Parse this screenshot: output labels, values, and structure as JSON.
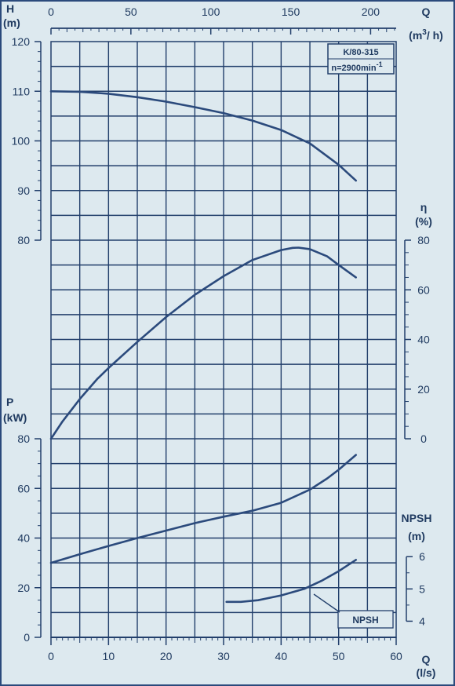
{
  "chart_data": {
    "type": "line",
    "model": "K/80-315",
    "speed_prefix": "n=2900min",
    "speed_exp": "-1",
    "colors": {
      "background": "#dde9ef",
      "ink": "#1f3a60",
      "grid": "#223f6b",
      "curve": "#2b4a7c"
    },
    "grid": true,
    "axes": {
      "q_ls": {
        "title": "Q",
        "unit": "(l/s)",
        "range": [
          0,
          60
        ],
        "ticks": [
          0,
          10,
          20,
          30,
          40,
          50,
          60
        ]
      },
      "q_m3h": {
        "title": "Q",
        "unit_pre": "(m",
        "unit_sup": "3",
        "unit_post": "/ h)",
        "range": [
          0,
          216
        ],
        "ticks": [
          0,
          50,
          100,
          150,
          200
        ]
      },
      "head": {
        "title": "H",
        "unit": "(m)",
        "range": [
          80,
          120
        ],
        "ticks": [
          80,
          90,
          100,
          110,
          120
        ]
      },
      "efficiency": {
        "title": "η",
        "unit": "(%)",
        "range": [
          0,
          80
        ],
        "ticks": [
          0,
          20,
          40,
          60,
          80
        ]
      },
      "power": {
        "title": "P",
        "unit": "(kW)",
        "range": [
          0,
          80
        ],
        "ticks": [
          0,
          20,
          40,
          60,
          80
        ]
      },
      "npsh": {
        "title": "NPSH",
        "unit": "(m)",
        "range": [
          4,
          6
        ],
        "ticks": [
          4,
          5,
          6
        ]
      }
    },
    "npsh_label": "NPSH",
    "series": [
      {
        "key": "head",
        "axis": "head",
        "x": [
          0,
          5,
          10,
          15,
          20,
          25,
          30,
          35,
          40,
          45,
          50,
          53
        ],
        "y": [
          110,
          109.9,
          109.5,
          108.8,
          107.9,
          106.8,
          105.6,
          104.1,
          102.2,
          99.5,
          95.2,
          92
        ]
      },
      {
        "key": "efficiency",
        "axis": "efficiency",
        "x": [
          0,
          2,
          5,
          8,
          10,
          15,
          20,
          25,
          30,
          35,
          40,
          42,
          43,
          45,
          48,
          50,
          53
        ],
        "y": [
          0,
          7,
          16,
          24,
          28.5,
          39,
          49,
          58,
          65.5,
          72,
          76,
          76.9,
          77,
          76.4,
          73.5,
          70,
          65
        ]
      },
      {
        "key": "power",
        "axis": "power",
        "x": [
          0,
          5,
          10,
          15,
          20,
          25,
          30,
          35,
          40,
          45,
          48,
          50,
          53
        ],
        "y": [
          30,
          33.5,
          36.8,
          40,
          43,
          46,
          48.6,
          51,
          54.2,
          59.5,
          64,
          67.5,
          73.5
        ]
      },
      {
        "key": "npsh",
        "axis": "npsh",
        "x": [
          30.5,
          33,
          36,
          40,
          44,
          47,
          50,
          53
        ],
        "y": [
          4.6,
          4.6,
          4.65,
          4.8,
          5.0,
          5.25,
          5.55,
          5.9
        ]
      }
    ]
  }
}
